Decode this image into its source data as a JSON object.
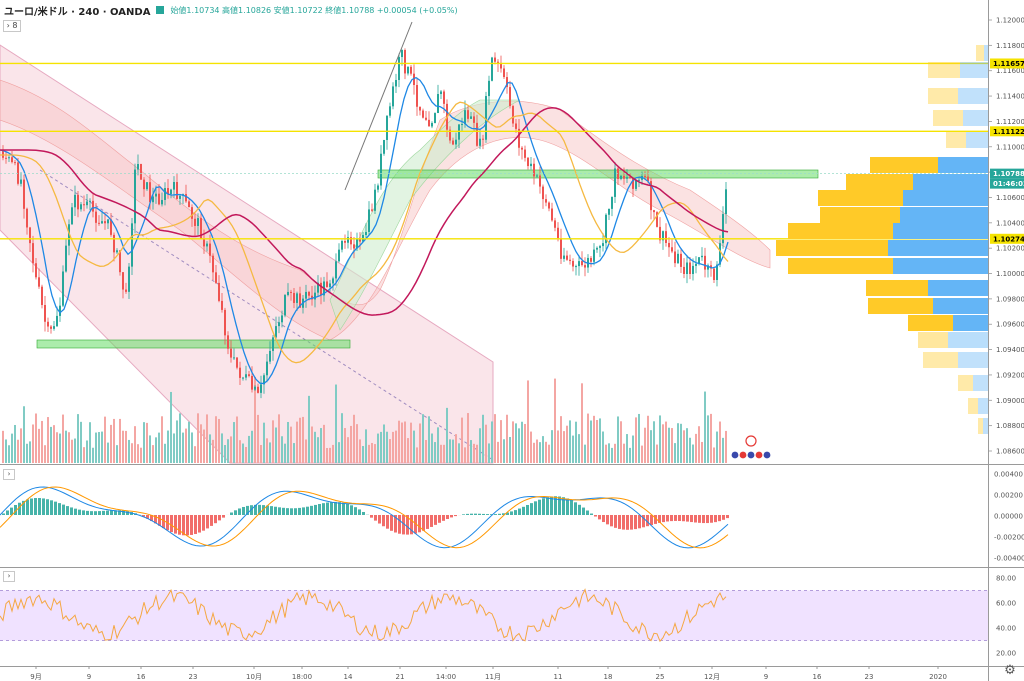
{
  "header": {
    "symbol": "ユーロ/米ドル · 240 · OANDA",
    "ohlc": "始値1.10734 高値1.10826 安値1.10722 終値1.10788 +0.00054 (+0.05%)",
    "collapse_label": "8"
  },
  "price_scale": {
    "ticks": [
      "1.12000",
      "1.11800",
      "1.11600",
      "1.11400",
      "1.11200",
      "1.11000",
      "1.10800",
      "1.10600",
      "1.10400",
      "1.10200",
      "1.10000",
      "1.09800",
      "1.09600",
      "1.09400",
      "1.09200",
      "1.09000",
      "1.08800",
      "1.08600"
    ],
    "tags": [
      {
        "label": "1.11657",
        "kind": "line"
      },
      {
        "label": "1.11122",
        "kind": "line"
      },
      {
        "label": "1.10788",
        "kind": "last"
      },
      {
        "label": "01:46:02",
        "kind": "countdown"
      },
      {
        "label": "1.10274",
        "kind": "line"
      }
    ]
  },
  "macd_scale": {
    "ticks": [
      "0.00400",
      "0.00200",
      "0.00000",
      "-0.00200",
      "-0.00400"
    ]
  },
  "rsi_scale": {
    "ticks": [
      "80.00",
      "60.00",
      "40.00",
      "20.00"
    ]
  },
  "time_axis": {
    "labels": [
      "9月",
      "9",
      "16",
      "23",
      "10月",
      "18:00",
      "14",
      "21",
      "14:00",
      "11月",
      "11",
      "18",
      "25",
      "12月",
      "9",
      "16",
      "23",
      "2020"
    ]
  },
  "colors": {
    "up": "#26a69a",
    "down": "#ef5350",
    "hline": "#f5e300",
    "zone": "#66dd66",
    "vp_up": "#64b5f6",
    "vp_down": "#ffca28",
    "rsi_band": "#e9d5ff",
    "channel": "#f4c6d0"
  }
}
